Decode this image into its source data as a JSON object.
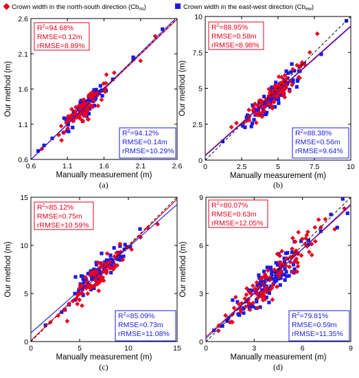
{
  "legend": {
    "north_south": "Crown width in the north-south direction (Cb",
    "north_south_sub": "ns",
    "east_west": "Crown width in the east-west direction (Cb",
    "east_west_sub": "ew",
    "close": ")"
  },
  "colors": {
    "red": "#e8001c",
    "blue": "#1a1ae6",
    "reference": "#000000"
  },
  "chart_data": [
    {
      "type": "scatter",
      "caption": "(a)",
      "xlabel": "Manually measurement (m)",
      "ylabel": "Our method (m)",
      "xlim": [
        0.6,
        2.6
      ],
      "ylim": [
        0.6,
        2.6
      ],
      "xticks": [
        "0.6",
        "1.1",
        "1.6",
        "2.1",
        "2.6"
      ],
      "yticks": [
        "0.6",
        "1.1",
        "1.6",
        "2.1",
        "2.6"
      ],
      "reference_line": "1:1",
      "series": [
        {
          "name": "Cb_ns",
          "color": "red",
          "marker": "diamond",
          "fit": [
            0.996,
            0.0
          ],
          "stats": {
            "r2": "94.68%",
            "rmse": "RMSE=0.12m",
            "rrmse": "rRMSE=8.89%"
          }
        },
        {
          "name": "Cb_ew",
          "color": "blue",
          "marker": "square",
          "fit": [
            1.012,
            -0.01
          ],
          "stats": {
            "r2": "94.12%",
            "rmse": "RMSE=0.14m",
            "rrmse": "rRMSE=10.29%"
          }
        }
      ],
      "points": {
        "center": 1.32,
        "spread": 0.16,
        "noise": 0.07,
        "n": 80,
        "extra_red": [
          [
            2.3,
            2.35
          ],
          [
            2.1,
            2.0
          ],
          [
            0.75,
            0.75
          ]
        ],
        "extra_blue": [
          [
            2.0,
            2.05
          ],
          [
            2.0,
            2.02
          ],
          [
            2.4,
            2.45
          ],
          [
            0.7,
            0.72
          ],
          [
            0.78,
            0.8
          ]
        ]
      }
    },
    {
      "type": "scatter",
      "caption": "(b)",
      "xlabel": "Manually measurement (m)",
      "ylabel": "Our method (m)",
      "xlim": [
        0,
        10
      ],
      "ylim": [
        0,
        10
      ],
      "xticks": [
        "0",
        "2.5",
        "5",
        "7.5",
        "10"
      ],
      "yticks": [
        "0",
        "2.5",
        "5",
        "7.5",
        "10"
      ],
      "reference_line": "1:1",
      "series": [
        {
          "name": "Cb_ns",
          "color": "red",
          "marker": "diamond",
          "fit": [
            0.9,
            0.35
          ],
          "stats": {
            "r2": "88.95%",
            "rmse": "RMSE=0.58m",
            "rrmse": "rRMSE=8.98%"
          }
        },
        {
          "name": "Cb_ew",
          "color": "blue",
          "marker": "square",
          "fit": [
            0.9,
            0.3
          ],
          "stats": {
            "r2": "88.38%",
            "rmse": "RMSE=0.56m",
            "rrmse": "rRMSE=9.64%"
          }
        }
      ],
      "points": {
        "center": 4.8,
        "spread": 1.0,
        "noise": 0.45,
        "n": 90,
        "extra_red": [
          [
            7.7,
            8.8
          ],
          [
            1.8,
            2.3
          ],
          [
            3.0,
            3.5
          ]
        ],
        "extra_blue": [
          [
            9.7,
            9.7
          ],
          [
            1.2,
            1.3
          ],
          [
            6.5,
            6.2
          ]
        ]
      }
    },
    {
      "type": "scatter",
      "caption": "(c)",
      "xlabel": "Manually measurement (m)",
      "ylabel": "Our method (m)",
      "xlim": [
        0,
        15
      ],
      "ylim": [
        0,
        15
      ],
      "xticks": [
        "0",
        "5",
        "10",
        "15"
      ],
      "yticks": [
        "0",
        "5",
        "10",
        "15"
      ],
      "reference_line": "1:1",
      "series": [
        {
          "name": "Cb_ns",
          "color": "red",
          "marker": "diamond",
          "fit": [
            0.98,
            0.1
          ],
          "stats": {
            "r2": "85.12%",
            "rmse": "RMSE=0.75m",
            "rrmse": "rRMSE=10.59%"
          }
        },
        {
          "name": "Cb_ew",
          "color": "blue",
          "marker": "square",
          "fit": [
            0.89,
            0.9
          ],
          "stats": {
            "r2": "85.09%",
            "rmse": "RMSE=0.73m",
            "rrmse": "rRMSE=11.08%"
          }
        }
      ],
      "points": {
        "center": 6.8,
        "spread": 1.5,
        "noise": 0.7,
        "n": 90,
        "extra_red": [
          [
            2.8,
            2.7
          ],
          [
            2.0,
            2.0
          ],
          [
            13.0,
            12.2
          ],
          [
            12.0,
            11.8
          ]
        ],
        "extra_blue": [
          [
            1.5,
            1.7
          ],
          [
            11.2,
            11.7
          ],
          [
            3.5,
            3.3
          ]
        ]
      }
    },
    {
      "type": "scatter",
      "caption": "(d)",
      "xlabel": "Manually measurement (m)",
      "ylabel": "Our method (m)",
      "xlim": [
        0,
        9
      ],
      "ylim": [
        0,
        9
      ],
      "xticks": [
        "0",
        "3",
        "6",
        "9"
      ],
      "yticks": [
        "0",
        "3",
        "6",
        "9"
      ],
      "reference_line": "1:1",
      "series": [
        {
          "name": "Cb_ns",
          "color": "red",
          "marker": "diamond",
          "fit": [
            0.91,
            0.3
          ],
          "stats": {
            "r2": "80.07%",
            "rmse": "RMSE=0.63m",
            "rrmse": "rRMSE=12.05%"
          }
        },
        {
          "name": "Cb_ew",
          "color": "blue",
          "marker": "square",
          "fit": [
            0.93,
            0.2
          ],
          "stats": {
            "r2": "79.81%",
            "rmse": "RMSE=0.59m",
            "rrmse": "rRMSE=11.35%"
          }
        }
      ],
      "points": {
        "center": 4.3,
        "spread": 1.4,
        "noise": 0.5,
        "n": 110,
        "extra_red": [
          [
            8.6,
            8.3
          ],
          [
            8.0,
            7.0
          ],
          [
            7.0,
            7.6
          ],
          [
            0.8,
            1.0
          ],
          [
            1.5,
            1.2
          ]
        ],
        "extra_blue": [
          [
            8.5,
            8.9
          ],
          [
            0.5,
            0.7
          ],
          [
            8.8,
            8.0
          ]
        ]
      }
    }
  ]
}
